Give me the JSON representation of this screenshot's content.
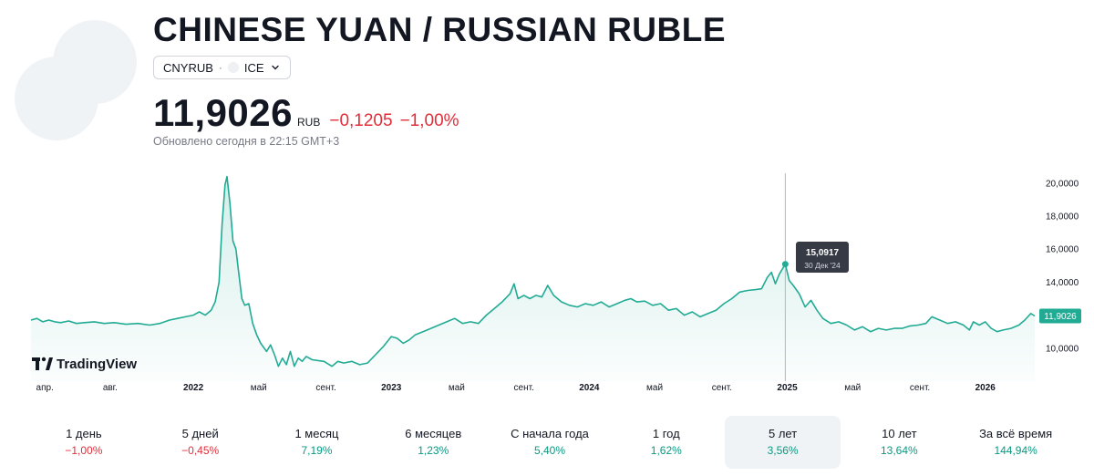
{
  "header": {
    "title": "CHINESE YUAN / RUSSIAN RUBLE",
    "symbol": "CNYRUB",
    "separator": "·",
    "exchange": "ICE"
  },
  "quote": {
    "price": "11,9026",
    "currency": "RUB",
    "change": "−0,1205",
    "change_percent": "−1,00%",
    "updated": "Обновлено сегодня в 22:15 GMT+3"
  },
  "colors": {
    "line": "#22ab94",
    "negative": "#e02e3a",
    "positive": "#089981",
    "price_badge": "#22ab94"
  },
  "branding": {
    "text": "TradingView"
  },
  "tooltip": {
    "value": "15,0917",
    "date": "30 Дек '24"
  },
  "chart_data": {
    "type": "area",
    "current_value_label": "11,9026",
    "ylim": [
      8.0,
      20.6
    ],
    "y_ticks": [
      {
        "value": 10,
        "label": "10,0000"
      },
      {
        "value": 12,
        "label": "12,0000"
      },
      {
        "value": 14,
        "label": "14,0000"
      },
      {
        "value": 16,
        "label": "16,0000"
      },
      {
        "value": 18,
        "label": "18,0000"
      },
      {
        "value": 20,
        "label": "20,0000"
      }
    ],
    "x_ticks": [
      {
        "t": 2021.25,
        "label": "апр.",
        "year": false
      },
      {
        "t": 2021.58,
        "label": "авг.",
        "year": false
      },
      {
        "t": 2022.0,
        "label": "2022",
        "year": true
      },
      {
        "t": 2022.33,
        "label": "май",
        "year": false
      },
      {
        "t": 2022.67,
        "label": "сент.",
        "year": false
      },
      {
        "t": 2023.0,
        "label": "2023",
        "year": true
      },
      {
        "t": 2023.33,
        "label": "май",
        "year": false
      },
      {
        "t": 2023.67,
        "label": "сент.",
        "year": false
      },
      {
        "t": 2024.0,
        "label": "2024",
        "year": true
      },
      {
        "t": 2024.33,
        "label": "май",
        "year": false
      },
      {
        "t": 2024.67,
        "label": "сент.",
        "year": false
      },
      {
        "t": 2025.0,
        "label": "2025",
        "year": true
      },
      {
        "t": 2025.33,
        "label": "май",
        "year": false
      },
      {
        "t": 2025.67,
        "label": "сент.",
        "year": false
      },
      {
        "t": 2026.0,
        "label": "2026",
        "year": true
      }
    ],
    "hover_point": {
      "t": 2024.99,
      "y": 15.09
    },
    "series": [
      {
        "values": [
          [
            2021.18,
            11.7
          ],
          [
            2021.21,
            11.8
          ],
          [
            2021.24,
            11.6
          ],
          [
            2021.27,
            11.7
          ],
          [
            2021.3,
            11.6
          ],
          [
            2021.33,
            11.55
          ],
          [
            2021.37,
            11.65
          ],
          [
            2021.41,
            11.5
          ],
          [
            2021.45,
            11.55
          ],
          [
            2021.5,
            11.6
          ],
          [
            2021.55,
            11.5
          ],
          [
            2021.6,
            11.55
          ],
          [
            2021.66,
            11.45
          ],
          [
            2021.72,
            11.5
          ],
          [
            2021.78,
            11.4
          ],
          [
            2021.83,
            11.5
          ],
          [
            2021.88,
            11.7
          ],
          [
            2021.92,
            11.8
          ],
          [
            2021.96,
            11.9
          ],
          [
            2022.0,
            12.0
          ],
          [
            2022.03,
            12.2
          ],
          [
            2022.06,
            12.0
          ],
          [
            2022.09,
            12.3
          ],
          [
            2022.11,
            12.8
          ],
          [
            2022.13,
            14.0
          ],
          [
            2022.145,
            17.5
          ],
          [
            2022.16,
            19.9
          ],
          [
            2022.17,
            20.4
          ],
          [
            2022.185,
            18.8
          ],
          [
            2022.2,
            16.5
          ],
          [
            2022.215,
            16.0
          ],
          [
            2022.23,
            14.5
          ],
          [
            2022.245,
            13.0
          ],
          [
            2022.26,
            12.6
          ],
          [
            2022.28,
            12.7
          ],
          [
            2022.3,
            11.5
          ],
          [
            2022.32,
            10.8
          ],
          [
            2022.34,
            10.3
          ],
          [
            2022.37,
            9.8
          ],
          [
            2022.39,
            10.2
          ],
          [
            2022.41,
            9.6
          ],
          [
            2022.43,
            8.9
          ],
          [
            2022.45,
            9.4
          ],
          [
            2022.47,
            9.0
          ],
          [
            2022.49,
            9.8
          ],
          [
            2022.51,
            8.9
          ],
          [
            2022.53,
            9.4
          ],
          [
            2022.55,
            9.2
          ],
          [
            2022.57,
            9.5
          ],
          [
            2022.6,
            9.3
          ],
          [
            2022.63,
            9.25
          ],
          [
            2022.66,
            9.2
          ],
          [
            2022.7,
            8.9
          ],
          [
            2022.73,
            9.2
          ],
          [
            2022.76,
            9.1
          ],
          [
            2022.8,
            9.2
          ],
          [
            2022.84,
            9.0
          ],
          [
            2022.88,
            9.1
          ],
          [
            2022.92,
            9.6
          ],
          [
            2022.96,
            10.1
          ],
          [
            2023.0,
            10.7
          ],
          [
            2023.03,
            10.6
          ],
          [
            2023.06,
            10.3
          ],
          [
            2023.09,
            10.5
          ],
          [
            2023.12,
            10.8
          ],
          [
            2023.16,
            11.0
          ],
          [
            2023.2,
            11.2
          ],
          [
            2023.24,
            11.4
          ],
          [
            2023.28,
            11.6
          ],
          [
            2023.32,
            11.8
          ],
          [
            2023.36,
            11.5
          ],
          [
            2023.4,
            11.6
          ],
          [
            2023.44,
            11.5
          ],
          [
            2023.48,
            12.0
          ],
          [
            2023.52,
            12.4
          ],
          [
            2023.56,
            12.8
          ],
          [
            2023.6,
            13.3
          ],
          [
            2023.62,
            13.9
          ],
          [
            2023.64,
            13.0
          ],
          [
            2023.67,
            13.2
          ],
          [
            2023.7,
            13.0
          ],
          [
            2023.73,
            13.2
          ],
          [
            2023.76,
            13.1
          ],
          [
            2023.79,
            13.8
          ],
          [
            2023.82,
            13.2
          ],
          [
            2023.86,
            12.8
          ],
          [
            2023.9,
            12.6
          ],
          [
            2023.94,
            12.5
          ],
          [
            2023.98,
            12.7
          ],
          [
            2024.02,
            12.6
          ],
          [
            2024.06,
            12.8
          ],
          [
            2024.1,
            12.5
          ],
          [
            2024.14,
            12.7
          ],
          [
            2024.18,
            12.9
          ],
          [
            2024.21,
            13.0
          ],
          [
            2024.24,
            12.8
          ],
          [
            2024.28,
            12.85
          ],
          [
            2024.32,
            12.6
          ],
          [
            2024.36,
            12.7
          ],
          [
            2024.4,
            12.3
          ],
          [
            2024.44,
            12.4
          ],
          [
            2024.48,
            12.0
          ],
          [
            2024.52,
            12.2
          ],
          [
            2024.56,
            11.9
          ],
          [
            2024.6,
            12.1
          ],
          [
            2024.64,
            12.3
          ],
          [
            2024.68,
            12.7
          ],
          [
            2024.72,
            13.0
          ],
          [
            2024.76,
            13.4
          ],
          [
            2024.8,
            13.5
          ],
          [
            2024.84,
            13.55
          ],
          [
            2024.87,
            13.6
          ],
          [
            2024.9,
            14.3
          ],
          [
            2024.92,
            14.6
          ],
          [
            2024.94,
            13.9
          ],
          [
            2024.96,
            14.5
          ],
          [
            2024.99,
            15.09
          ],
          [
            2025.01,
            14.1
          ],
          [
            2025.03,
            13.8
          ],
          [
            2025.06,
            13.3
          ],
          [
            2025.09,
            12.5
          ],
          [
            2025.12,
            12.9
          ],
          [
            2025.15,
            12.3
          ],
          [
            2025.18,
            11.8
          ],
          [
            2025.22,
            11.5
          ],
          [
            2025.26,
            11.6
          ],
          [
            2025.3,
            11.4
          ],
          [
            2025.34,
            11.1
          ],
          [
            2025.38,
            11.3
          ],
          [
            2025.42,
            11.0
          ],
          [
            2025.46,
            11.2
          ],
          [
            2025.5,
            11.1
          ],
          [
            2025.54,
            11.2
          ],
          [
            2025.58,
            11.2
          ],
          [
            2025.62,
            11.35
          ],
          [
            2025.66,
            11.4
          ],
          [
            2025.7,
            11.5
          ],
          [
            2025.73,
            11.9
          ],
          [
            2025.77,
            11.7
          ],
          [
            2025.81,
            11.5
          ],
          [
            2025.85,
            11.6
          ],
          [
            2025.89,
            11.4
          ],
          [
            2025.92,
            11.1
          ],
          [
            2025.94,
            11.6
          ],
          [
            2025.97,
            11.4
          ],
          [
            2026.0,
            11.6
          ],
          [
            2026.03,
            11.2
          ],
          [
            2026.06,
            11.0
          ],
          [
            2026.09,
            11.1
          ],
          [
            2026.13,
            11.2
          ],
          [
            2026.17,
            11.4
          ],
          [
            2026.2,
            11.7
          ],
          [
            2026.23,
            12.1
          ],
          [
            2026.25,
            11.95
          ]
        ]
      }
    ]
  },
  "periods": [
    {
      "label": "1 день",
      "value": "−1,00%",
      "sign": "neg"
    },
    {
      "label": "5 дней",
      "value": "−0,45%",
      "sign": "neg"
    },
    {
      "label": "1 месяц",
      "value": "7,19%",
      "sign": "pos"
    },
    {
      "label": "6 месяцев",
      "value": "1,23%",
      "sign": "pos"
    },
    {
      "label": "С начала года",
      "value": "5,40%",
      "sign": "pos"
    },
    {
      "label": "1 год",
      "value": "1,62%",
      "sign": "pos"
    },
    {
      "label": "5 лет",
      "value": "3,56%",
      "sign": "pos",
      "selected": true
    },
    {
      "label": "10 лет",
      "value": "13,64%",
      "sign": "pos"
    },
    {
      "label": "За всё время",
      "value": "144,94%",
      "sign": "pos"
    }
  ]
}
